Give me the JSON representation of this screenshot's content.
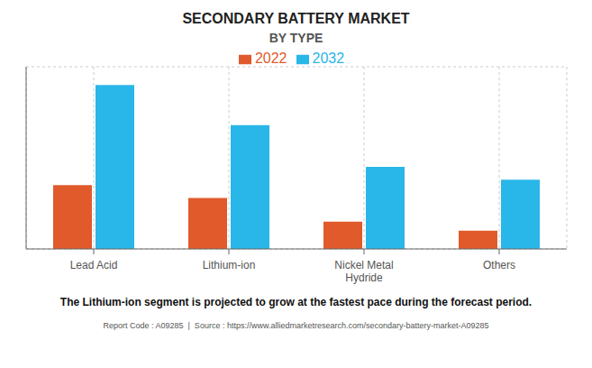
{
  "chart_data": {
    "type": "bar",
    "title": "SECONDARY BATTERY MARKET",
    "subtitle": "BY TYPE",
    "categories": [
      "Lead Acid",
      "Lithium-ion",
      "Nickel Metal\nHydride",
      "Others"
    ],
    "series": [
      {
        "name": "2022",
        "color": "#e05a2b",
        "values": [
          35,
          28,
          15,
          10
        ]
      },
      {
        "name": "2032",
        "color": "#29b6e8",
        "values": [
          90,
          68,
          45,
          38
        ]
      }
    ],
    "ylim": [
      0,
      100
    ],
    "yticks": [
      0,
      20,
      40,
      60,
      80,
      100
    ],
    "grid": true,
    "legend": "top",
    "tick_labels": "x",
    "annotations": [
      "The Lithium-ion segment is projected to grow at the fastest pace during the forecast period.",
      "Report Code : A09285  |  Source : https://www.alliedmarketresearch.com/secondary-battery-market-A09285"
    ]
  }
}
